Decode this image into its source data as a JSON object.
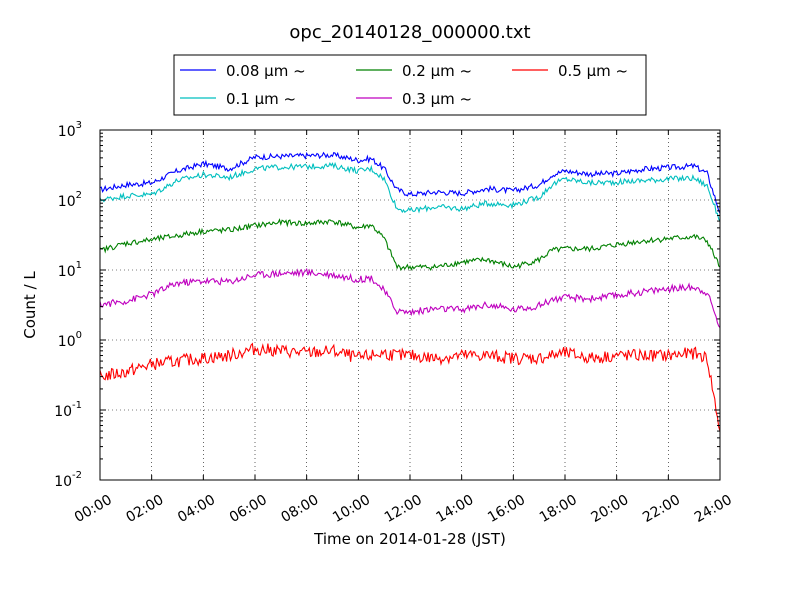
{
  "chart_data": {
    "type": "line",
    "title": "opc_20140128_000000.txt",
    "xlabel": "Time on 2014-01-28 (JST)",
    "ylabel": "Count / L",
    "yscale": "log",
    "ylim": [
      0.01,
      1000
    ],
    "xlim": [
      0,
      24
    ],
    "grid": true,
    "legend": "top-center-outside",
    "x_tick_labels": [
      "00:00",
      "02:00",
      "04:00",
      "06:00",
      "08:00",
      "10:00",
      "12:00",
      "14:00",
      "16:00",
      "18:00",
      "20:00",
      "22:00",
      "24:00"
    ],
    "y_tick_labels": [
      {
        "base": "10",
        "exp": "-2"
      },
      {
        "base": "10",
        "exp": "-1"
      },
      {
        "base": "10",
        "exp": "0"
      },
      {
        "base": "10",
        "exp": "1"
      },
      {
        "base": "10",
        "exp": "2"
      },
      {
        "base": "10",
        "exp": "3"
      }
    ],
    "x": [
      0,
      1,
      2,
      3,
      4,
      5,
      6,
      7,
      8,
      9,
      10,
      10.5,
      11,
      11.5,
      12,
      13,
      14,
      15,
      16,
      17,
      17.5,
      18,
      19,
      20,
      21,
      22,
      23,
      23.5,
      24
    ],
    "series": [
      {
        "name": "0.08 μm ~",
        "color": "#0000ff",
        "values": [
          140,
          165,
          175,
          260,
          330,
          280,
          410,
          420,
          430,
          440,
          370,
          390,
          280,
          140,
          120,
          130,
          125,
          145,
          135,
          165,
          230,
          260,
          235,
          240,
          275,
          290,
          305,
          240,
          65
        ]
      },
      {
        "name": "0.1 μm ~",
        "color": "#00bfbf",
        "values": [
          100,
          115,
          120,
          190,
          230,
          210,
          280,
          295,
          300,
          310,
          260,
          280,
          200,
          75,
          70,
          80,
          75,
          90,
          85,
          110,
          165,
          200,
          175,
          180,
          190,
          200,
          205,
          160,
          50
        ]
      },
      {
        "name": "0.2 μm ~",
        "color": "#008000",
        "values": [
          19,
          24,
          27,
          31,
          36,
          37,
          43,
          48,
          46,
          50,
          40,
          44,
          28,
          11,
          11,
          11,
          13,
          14,
          11,
          14,
          19,
          20,
          20,
          23,
          26,
          28,
          30,
          26,
          11
        ]
      },
      {
        "name": "0.3 μm ~",
        "color": "#bf00bf",
        "values": [
          3.2,
          3.6,
          4.5,
          6.5,
          7.0,
          6.8,
          8.5,
          9.0,
          9.2,
          8.6,
          7.3,
          7.8,
          5.0,
          2.6,
          2.5,
          2.8,
          2.7,
          3.2,
          2.7,
          3.1,
          3.8,
          4.0,
          3.9,
          4.3,
          4.9,
          5.4,
          5.7,
          4.8,
          1.5
        ]
      },
      {
        "name": "0.5 μm ~",
        "color": "#ff0000",
        "values": [
          0.3,
          0.35,
          0.45,
          0.5,
          0.55,
          0.6,
          0.75,
          0.7,
          0.65,
          0.7,
          0.55,
          0.6,
          0.65,
          0.6,
          0.6,
          0.55,
          0.6,
          0.6,
          0.55,
          0.55,
          0.6,
          0.65,
          0.55,
          0.6,
          0.6,
          0.6,
          0.65,
          0.55,
          0.05
        ]
      }
    ]
  }
}
